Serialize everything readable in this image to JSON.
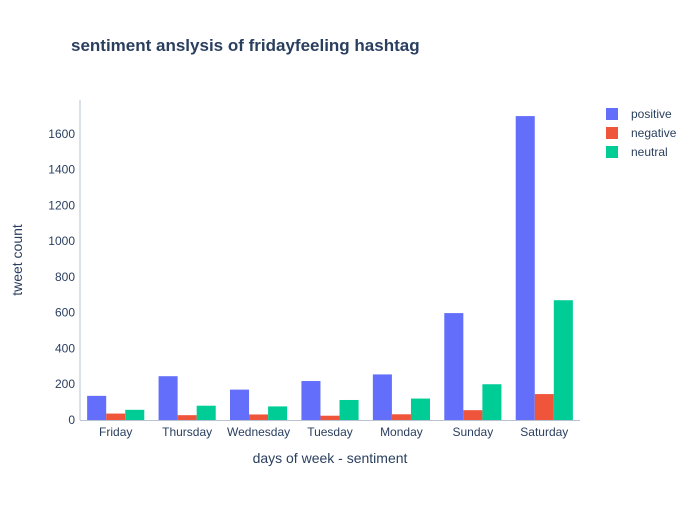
{
  "chart_data": {
    "type": "bar",
    "title": "sentiment anslysis of fridayfeeling hashtag",
    "xlabel": "days of week - sentiment",
    "ylabel": "tweet count",
    "categories": [
      "Friday",
      "Thursday",
      "Wednesday",
      "Tuesday",
      "Monday",
      "Sunday",
      "Saturday"
    ],
    "series": [
      {
        "name": "positive",
        "color": "#636efa",
        "values": [
          135,
          245,
          170,
          218,
          255,
          598,
          1700
        ]
      },
      {
        "name": "negative",
        "color": "#ef553b",
        "values": [
          36,
          27,
          31,
          24,
          32,
          55,
          145
        ]
      },
      {
        "name": "neutral",
        "color": "#00cc96",
        "values": [
          57,
          80,
          76,
          112,
          120,
          200,
          670
        ]
      }
    ],
    "ylim": [
      0,
      1790
    ],
    "yticks": [
      0,
      200,
      400,
      600,
      800,
      1000,
      1200,
      1400,
      1600
    ],
    "grid": false,
    "legend_position": "top-right"
  }
}
